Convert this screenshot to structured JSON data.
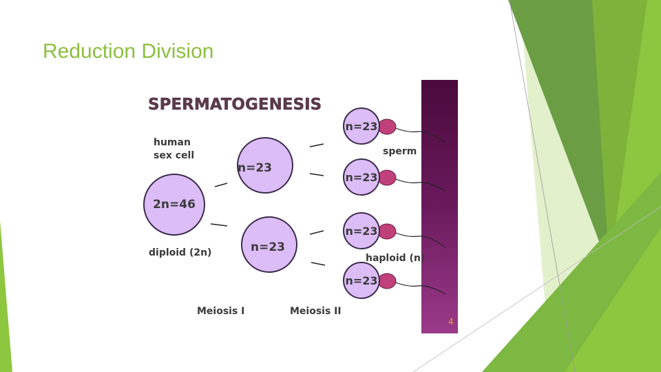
{
  "title": "Reduction Division",
  "page_number": "4",
  "diagram": {
    "heading": "SPERMATOGENESIS",
    "label_human": [
      "human",
      "sex cell"
    ],
    "parent_cell": "2n=46",
    "meiosis1_cells": [
      "n=23",
      "n=23"
    ],
    "meiosis2_cells": [
      "n=23",
      "n=23",
      "n=23",
      "n=23"
    ],
    "sperm_label": "sperm",
    "haploid_label": "haploid (n)",
    "diploid_label": "diploid (2n)",
    "stages": [
      "Meiosis I",
      "Meiosis II"
    ]
  }
}
